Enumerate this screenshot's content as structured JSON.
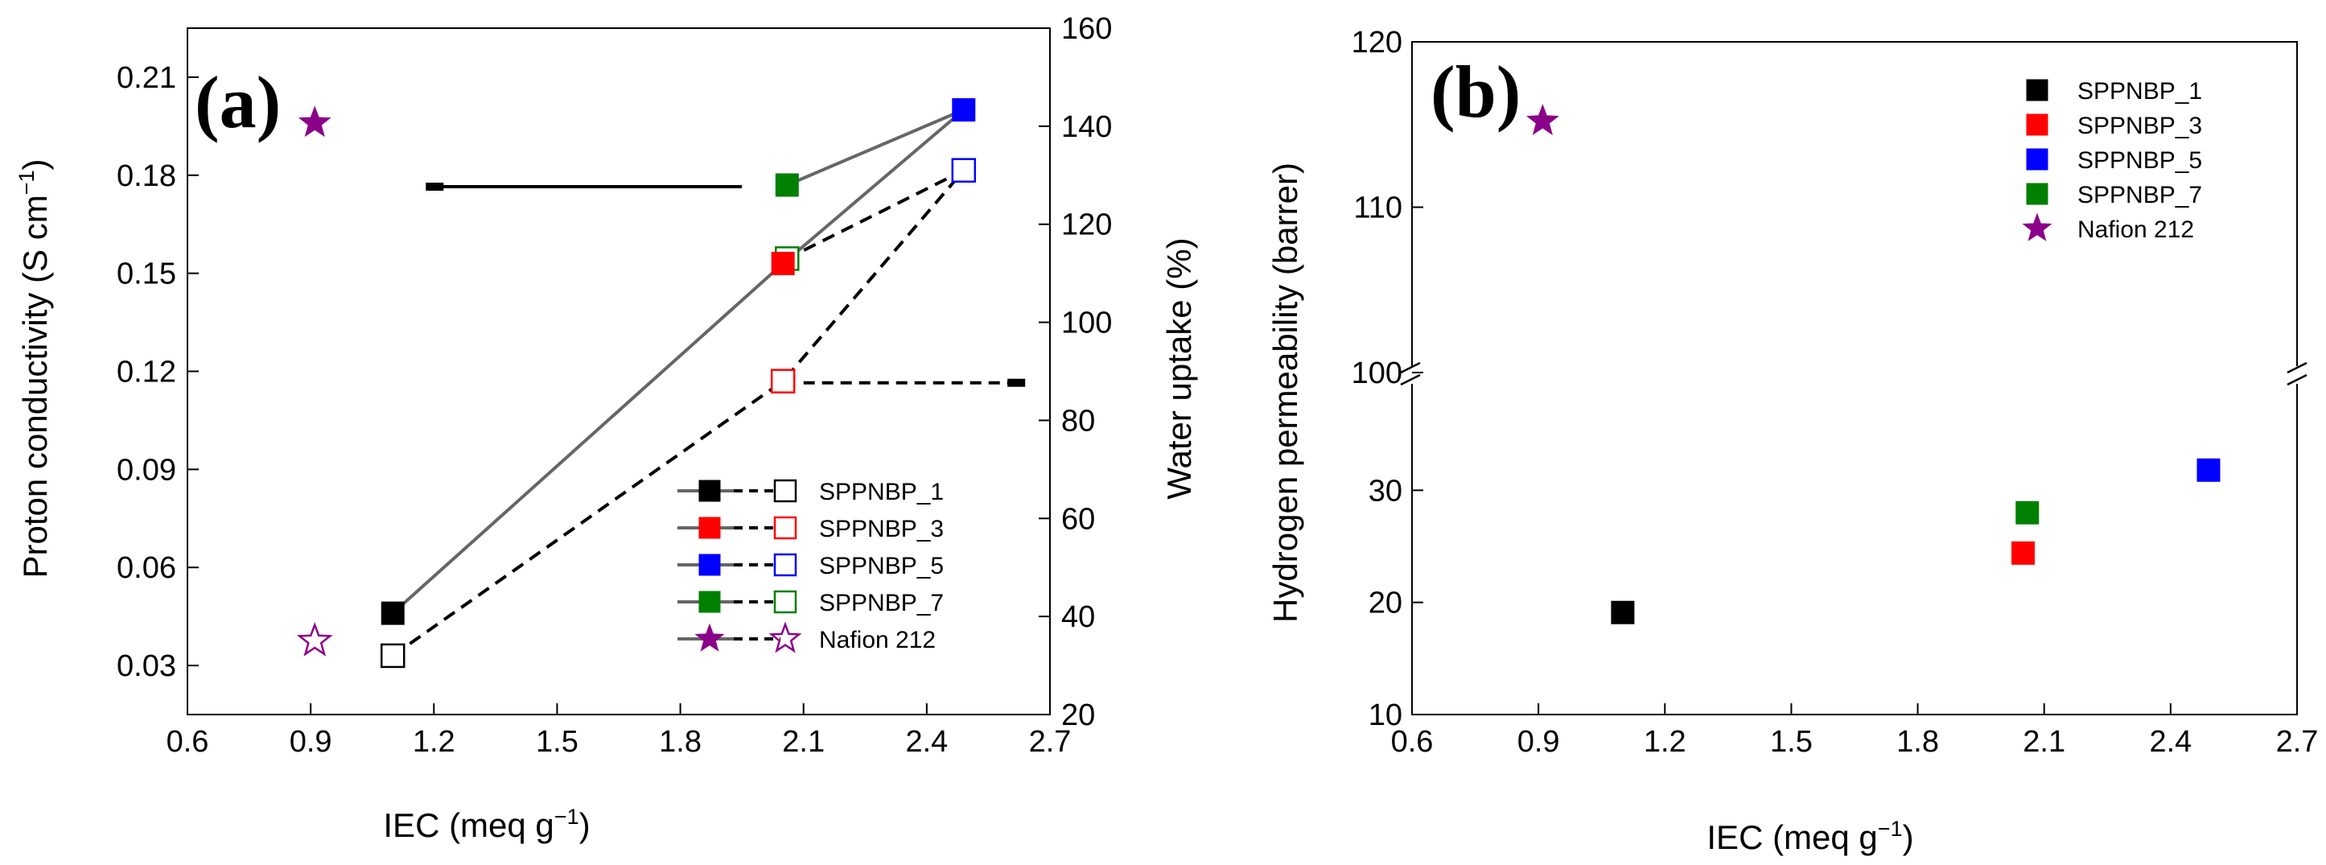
{
  "colors": {
    "SPPNBP_1": "#000000",
    "SPPNBP_3": "#ff0000",
    "SPPNBP_5": "#0000ff",
    "SPPNBP_7": "#008000",
    "Nafion 212": "#8b008b"
  },
  "chart_data": [
    {
      "type": "line",
      "panel_label": "(a)",
      "title": "",
      "xlabel": "IEC (meq g",
      "xlabel_sup": "−1",
      "xlabel_close": ")",
      "ylabel": "Proton conductivity (S cm",
      "ylabel_sup": "−1",
      "ylabel_close": ")",
      "y2label": "Water uptake (%)",
      "xlim": [
        0.6,
        2.7
      ],
      "ylim": [
        0.015,
        0.225
      ],
      "y2lim": [
        20,
        160
      ],
      "xticks": [
        "0.6",
        "0.9",
        "1.2",
        "1.5",
        "1.8",
        "2.1",
        "2.4",
        "2.7"
      ],
      "yticks": [
        "0.03",
        "0.06",
        "0.09",
        "0.12",
        "0.15",
        "0.18",
        "0.21"
      ],
      "y2ticks": [
        "20",
        "40",
        "60",
        "80",
        "100",
        "120",
        "140",
        "160"
      ],
      "legend_position": "bottom-right",
      "legend": [
        "SPPNBP_1",
        "SPPNBP_3",
        "SPPNBP_5",
        "SPPNBP_7",
        "Nafion 212"
      ],
      "series": [
        {
          "name": "Proton conductivity",
          "axis": "left",
          "marker": "filled",
          "line": "solid",
          "points": [
            {
              "label": "SPPNBP_1",
              "x": 1.1,
              "y": 0.046
            },
            {
              "label": "SPPNBP_3",
              "x": 2.05,
              "y": 0.153
            },
            {
              "label": "SPPNBP_5",
              "x": 2.49,
              "y": 0.2
            },
            {
              "label": "SPPNBP_7",
              "x": 2.06,
              "y": 0.177
            }
          ],
          "path_order": [
            "SPPNBP_1",
            "SPPNBP_3",
            "SPPNBP_5",
            "SPPNBP_7"
          ],
          "reference": {
            "label": "Nafion 212",
            "x": 0.91,
            "y": 0.196,
            "marker": "star-filled"
          }
        },
        {
          "name": "Water uptake",
          "axis": "right",
          "marker": "open",
          "line": "dashed",
          "points": [
            {
              "label": "SPPNBP_1",
              "x": 1.1,
              "y": 32
            },
            {
              "label": "SPPNBP_3",
              "x": 2.05,
              "y": 88
            },
            {
              "label": "SPPNBP_5",
              "x": 2.49,
              "y": 131
            },
            {
              "label": "SPPNBP_7",
              "x": 2.06,
              "y": 113
            }
          ],
          "path_order": [
            "SPPNBP_1",
            "SPPNBP_3",
            "SPPNBP_5",
            "SPPNBP_7"
          ],
          "reference": {
            "label": "Nafion 212",
            "x": 0.91,
            "y": 35,
            "marker": "star-open"
          }
        }
      ],
      "annotations": [
        {
          "text": "arrow to left axis",
          "from_x": 1.95,
          "to_x": 1.2,
          "y": 0.1765,
          "axis": "left",
          "style": "solid"
        },
        {
          "text": "arrow to right axis",
          "from_x": 2.1,
          "to_x": 2.62,
          "y": 0.1165,
          "axis": "left",
          "style": "dashed"
        }
      ]
    },
    {
      "type": "scatter",
      "panel_label": "(b)",
      "title": "",
      "xlabel": "IEC (meq g",
      "xlabel_sup": "−1",
      "xlabel_close": ")",
      "ylabel": "Hydrogen permeability (barrer)",
      "xlim": [
        0.6,
        2.7
      ],
      "y_broken_axis": {
        "lower": [
          10,
          40
        ],
        "upper": [
          100,
          120
        ],
        "break_at": 100
      },
      "xticks": [
        "0.6",
        "0.9",
        "1.2",
        "1.5",
        "1.8",
        "2.1",
        "2.4",
        "2.7"
      ],
      "yticks_lower": [
        "10",
        "20",
        "30"
      ],
      "yticks_upper": [
        "100",
        "110",
        "120"
      ],
      "legend_position": "top-right",
      "legend": [
        "SPPNBP_1",
        "SPPNBP_3",
        "SPPNBP_5",
        "SPPNBP_7",
        "Nafion 212"
      ],
      "points": [
        {
          "label": "SPPNBP_1",
          "x": 1.1,
          "y": 19.1
        },
        {
          "label": "SPPNBP_3",
          "x": 2.05,
          "y": 24.4
        },
        {
          "label": "SPPNBP_5",
          "x": 2.49,
          "y": 31.8
        },
        {
          "label": "SPPNBP_7",
          "x": 2.06,
          "y": 28.0
        },
        {
          "label": "Nafion 212",
          "x": 0.91,
          "y": 115.2,
          "marker": "star-filled"
        }
      ]
    }
  ]
}
